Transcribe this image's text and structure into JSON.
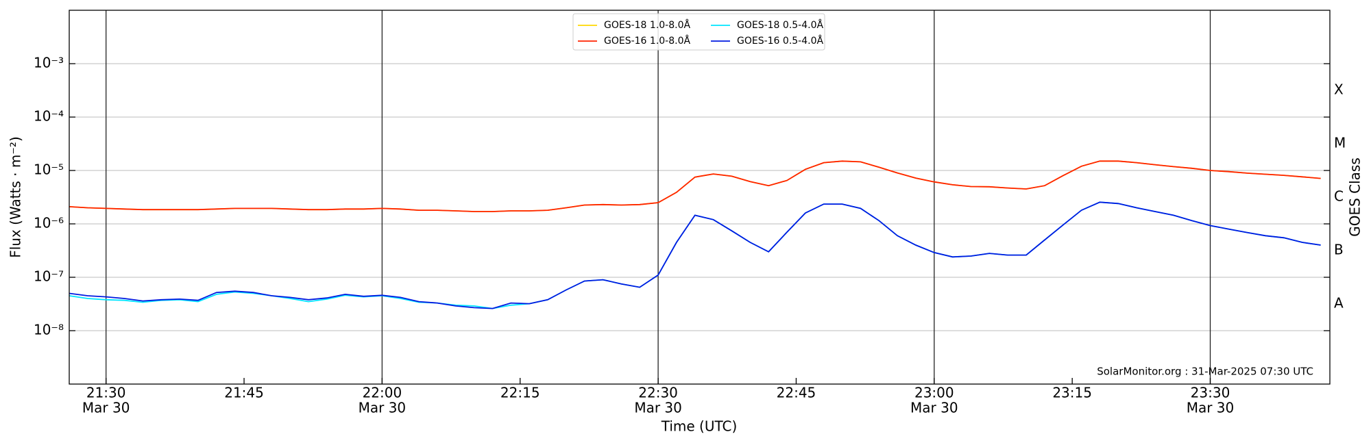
{
  "chart_data": {
    "type": "line",
    "log_scale": true,
    "grid": true,
    "x_label": "Time (UTC)",
    "y_label": "Flux (Watts · m⁻²)",
    "y2_label": "GOES Class",
    "annotation": "SolarMonitor.org : 31-Mar-2025 07:30 UTC",
    "legend_position": "top",
    "xlim": [
      "21:26",
      "23:43"
    ],
    "xticks": [
      {
        "value": "21:30",
        "label": "21:30",
        "date": "Mar 30"
      },
      "21:45",
      {
        "value": "22:00",
        "label": "22:00",
        "date": "Mar 30"
      },
      "22:15",
      {
        "value": "22:30",
        "label": "22:30",
        "date": "Mar 30"
      },
      "22:45",
      {
        "value": "23:00",
        "label": "23:00",
        "date": "Mar 30"
      },
      "23:15",
      {
        "value": "23:30",
        "label": "23:30",
        "date": "Mar 30"
      }
    ],
    "ylim": [
      1e-09,
      0.01
    ],
    "yticks": [
      {
        "value": 1e-08,
        "label": "10⁻⁸"
      },
      {
        "value": 1e-07,
        "label": "10⁻⁷"
      },
      {
        "value": 1e-06,
        "label": "10⁻⁶"
      },
      {
        "value": 1e-05,
        "label": "10⁻⁵"
      },
      {
        "value": 0.0001,
        "label": "10⁻⁴"
      },
      {
        "value": 0.001,
        "label": "10⁻³"
      }
    ],
    "class_ticks": [
      {
        "value": 3.162e-08,
        "label": "A"
      },
      {
        "value": 3.162e-07,
        "label": "B"
      },
      {
        "value": 3.162e-06,
        "label": "C"
      },
      {
        "value": 3.162e-05,
        "label": "M"
      },
      {
        "value": 0.0003162,
        "label": "X"
      }
    ],
    "x": [
      "21:26",
      "21:28",
      "21:30",
      "21:32",
      "21:34",
      "21:36",
      "21:38",
      "21:40",
      "21:42",
      "21:44",
      "21:46",
      "21:48",
      "21:50",
      "21:52",
      "21:54",
      "21:56",
      "21:58",
      "22:00",
      "22:02",
      "22:04",
      "22:06",
      "22:08",
      "22:10",
      "22:12",
      "22:14",
      "22:16",
      "22:18",
      "22:20",
      "22:22",
      "22:24",
      "22:26",
      "22:28",
      "22:30",
      "22:32",
      "22:34",
      "22:36",
      "22:38",
      "22:40",
      "22:42",
      "22:44",
      "22:46",
      "22:48",
      "22:50",
      "22:52",
      "22:54",
      "22:56",
      "22:58",
      "23:00",
      "23:02",
      "23:04",
      "23:06",
      "23:08",
      "23:10",
      "23:12",
      "23:14",
      "23:16",
      "23:18",
      "23:20",
      "23:22",
      "23:24",
      "23:26",
      "23:28",
      "23:30",
      "23:32",
      "23:34",
      "23:36",
      "23:38",
      "23:40",
      "23:42"
    ],
    "series": [
      {
        "name": "GOES-18 1.0-8.0Å",
        "color": "#ffd700",
        "values": [
          2.1e-06,
          2e-06,
          1.95e-06,
          1.9e-06,
          1.85e-06,
          1.85e-06,
          1.85e-06,
          1.85e-06,
          1.9e-06,
          1.95e-06,
          1.95e-06,
          1.95e-06,
          1.9e-06,
          1.85e-06,
          1.85e-06,
          1.9e-06,
          1.9e-06,
          1.95e-06,
          1.9e-06,
          1.8e-06,
          1.8e-06,
          1.75e-06,
          1.7e-06,
          1.7e-06,
          1.75e-06,
          1.75e-06,
          1.8e-06,
          2e-06,
          2.25e-06,
          2.3e-06,
          2.25e-06,
          2.3e-06,
          2.5e-06,
          3.9e-06,
          7.5e-06,
          8.6e-06,
          7.8e-06,
          6.2e-06,
          5.2e-06,
          6.5e-06,
          1.05e-05,
          1.4e-05,
          1.5e-05,
          1.45e-05,
          1.15e-05,
          9e-06,
          7.2e-06,
          6.1e-06,
          5.4e-06,
          5e-06,
          4.95e-06,
          4.7e-06,
          4.5e-06,
          5.2e-06,
          8e-06,
          1.2e-05,
          1.5e-05,
          1.5e-05,
          1.4e-05,
          1.28e-05,
          1.18e-05,
          1.1e-05,
          1e-05,
          9.5e-06,
          8.9e-06,
          8.5e-06,
          8.1e-06,
          7.6e-06,
          7.1e-06
        ]
      },
      {
        "name": "GOES-16 1.0-8.0Å",
        "color": "#ff2200",
        "values": [
          2.1e-06,
          2e-06,
          1.95e-06,
          1.9e-06,
          1.85e-06,
          1.85e-06,
          1.85e-06,
          1.85e-06,
          1.9e-06,
          1.95e-06,
          1.95e-06,
          1.95e-06,
          1.9e-06,
          1.85e-06,
          1.85e-06,
          1.9e-06,
          1.9e-06,
          1.95e-06,
          1.9e-06,
          1.8e-06,
          1.8e-06,
          1.75e-06,
          1.7e-06,
          1.7e-06,
          1.75e-06,
          1.75e-06,
          1.8e-06,
          2e-06,
          2.25e-06,
          2.3e-06,
          2.25e-06,
          2.3e-06,
          2.5e-06,
          3.9e-06,
          7.5e-06,
          8.6e-06,
          7.8e-06,
          6.2e-06,
          5.2e-06,
          6.5e-06,
          1.05e-05,
          1.4e-05,
          1.5e-05,
          1.45e-05,
          1.15e-05,
          9e-06,
          7.2e-06,
          6.1e-06,
          5.4e-06,
          5e-06,
          4.95e-06,
          4.7e-06,
          4.5e-06,
          5.2e-06,
          8e-06,
          1.2e-05,
          1.5e-05,
          1.5e-05,
          1.4e-05,
          1.28e-05,
          1.18e-05,
          1.1e-05,
          1e-05,
          9.5e-06,
          8.9e-06,
          8.5e-06,
          8.1e-06,
          7.6e-06,
          7.1e-06
        ]
      },
      {
        "name": "GOES-18 0.5-4.0Å",
        "color": "#00e5ff",
        "values": [
          4.5e-08,
          4e-08,
          3.8e-08,
          3.7e-08,
          3.4e-08,
          3.7e-08,
          3.8e-08,
          3.5e-08,
          4.8e-08,
          5.3e-08,
          5e-08,
          4.5e-08,
          4e-08,
          3.5e-08,
          3.9e-08,
          4.6e-08,
          4.3e-08,
          4.5e-08,
          4e-08,
          3.4e-08,
          3.3e-08,
          3e-08,
          2.9e-08,
          2.6e-08,
          3e-08,
          3.2e-08,
          3.8e-08,
          5.8e-08,
          8.5e-08,
          9e-08,
          7.5e-08,
          6.5e-08,
          1.1e-07,
          4.5e-07,
          1.45e-06,
          1.2e-06,
          7.4e-07,
          4.5e-07,
          3e-07,
          7e-07,
          1.6e-06,
          2.35e-06,
          2.35e-06,
          1.95e-06,
          1.15e-06,
          6e-07,
          4e-07,
          2.9e-07,
          2.4e-07,
          2.5e-07,
          2.8e-07,
          2.6e-07,
          2.6e-07,
          5e-07,
          9.5e-07,
          1.8e-06,
          2.55e-06,
          2.4e-06,
          2e-06,
          1.7e-06,
          1.45e-06,
          1.15e-06,
          9.3e-07,
          8e-07,
          6.9e-07,
          6e-07,
          5.5e-07,
          4.5e-07,
          4e-07
        ]
      },
      {
        "name": "GOES-16 0.5-4.0Å",
        "color": "#0019e0",
        "values": [
          5e-08,
          4.5e-08,
          4.3e-08,
          4e-08,
          3.6e-08,
          3.8e-08,
          3.9e-08,
          3.7e-08,
          5.2e-08,
          5.5e-08,
          5.2e-08,
          4.5e-08,
          4.2e-08,
          3.8e-08,
          4.1e-08,
          4.8e-08,
          4.4e-08,
          4.6e-08,
          4.2e-08,
          3.5e-08,
          3.3e-08,
          2.9e-08,
          2.7e-08,
          2.6e-08,
          3.3e-08,
          3.2e-08,
          3.8e-08,
          5.8e-08,
          8.5e-08,
          9e-08,
          7.5e-08,
          6.5e-08,
          1.1e-07,
          4.5e-07,
          1.45e-06,
          1.2e-06,
          7.4e-07,
          4.5e-07,
          3e-07,
          7e-07,
          1.6e-06,
          2.35e-06,
          2.35e-06,
          1.95e-06,
          1.15e-06,
          6e-07,
          4e-07,
          2.9e-07,
          2.4e-07,
          2.5e-07,
          2.8e-07,
          2.6e-07,
          2.6e-07,
          5e-07,
          9.5e-07,
          1.8e-06,
          2.55e-06,
          2.4e-06,
          2e-06,
          1.7e-06,
          1.45e-06,
          1.15e-06,
          9.3e-07,
          8e-07,
          6.9e-07,
          6e-07,
          5.5e-07,
          4.5e-07,
          4e-07
        ]
      }
    ]
  }
}
